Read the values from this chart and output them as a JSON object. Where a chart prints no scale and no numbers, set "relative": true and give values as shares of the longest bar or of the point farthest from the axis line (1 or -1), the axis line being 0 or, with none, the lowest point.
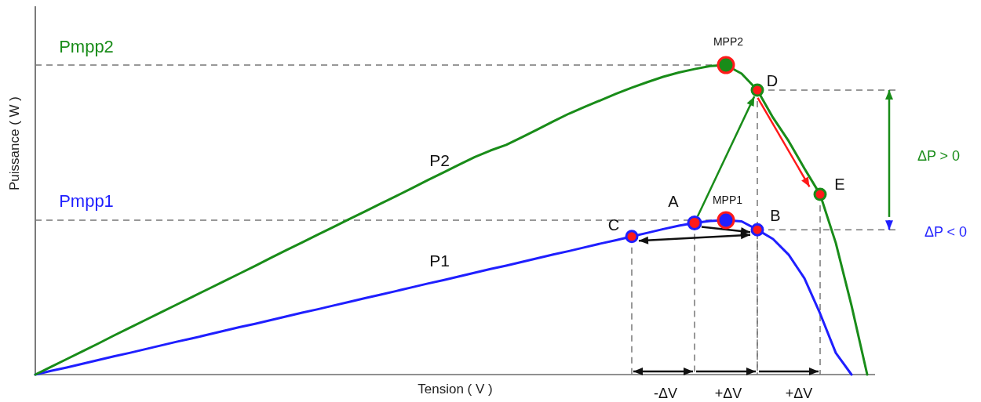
{
  "chart_data": {
    "type": "line",
    "relative": true,
    "xlabel": "Tension ( V )",
    "ylabel": "Puissance ( W )",
    "categories": [
      null,
      null,
      null,
      null,
      null,
      null,
      null,
      null,
      null,
      null,
      null,
      null,
      null,
      null,
      null,
      null,
      null,
      null,
      null,
      null,
      null,
      null,
      null,
      null,
      null,
      null,
      null,
      null,
      null,
      null,
      null,
      null,
      null,
      null,
      null,
      null,
      null,
      null,
      null,
      null,
      null,
      null,
      null,
      null,
      null,
      null,
      null,
      null,
      null,
      null,
      null,
      null,
      null,
      null
    ],
    "series": [
      {
        "name": "P1",
        "color": "#1f1fff",
        "values": [
          0,
          0.012,
          0.023,
          0.035,
          0.047,
          0.059,
          0.07,
          0.082,
          0.094,
          0.106,
          0.117,
          0.129,
          0.141,
          0.153,
          0.164,
          0.176,
          0.188,
          0.2,
          0.211,
          0.223,
          0.235,
          0.247,
          0.258,
          0.27,
          0.282,
          0.294,
          0.305,
          0.317,
          0.329,
          0.341,
          0.352,
          0.364,
          0.376,
          0.388,
          0.399,
          0.411,
          0.423,
          0.434,
          0.446,
          0.458,
          0.47,
          0.481,
          0.49,
          0.496,
          0.499,
          0.495,
          0.468,
          0.438,
          0.387,
          0.311,
          0.197,
          0.07,
          0,
          null
        ]
      },
      {
        "name": "P2",
        "color": "#198c19",
        "values": [
          0,
          0.025,
          0.05,
          0.075,
          0.1,
          0.126,
          0.151,
          0.176,
          0.201,
          0.226,
          0.251,
          0.276,
          0.301,
          0.326,
          0.351,
          0.377,
          0.402,
          0.427,
          0.452,
          0.477,
          0.502,
          0.527,
          0.552,
          0.577,
          0.602,
          0.628,
          0.653,
          0.678,
          0.703,
          0.724,
          0.742,
          0.767,
          0.792,
          0.818,
          0.843,
          0.865,
          0.886,
          0.907,
          0.927,
          0.945,
          0.962,
          0.976,
          0.987,
          0.997,
          1.0,
          0.972,
          0.919,
          0.83,
          0.754,
          0.666,
          0.582,
          0.425,
          0.223,
          0
        ]
      }
    ],
    "annotations": [
      "A",
      "B",
      "C",
      "D",
      "E",
      "MPP1",
      "MPP2",
      "ΔP > 0",
      "ΔP < 0",
      "-ΔV",
      "+ΔV",
      "+ΔV",
      "Pmpp2",
      "Pmpp1"
    ]
  }
}
